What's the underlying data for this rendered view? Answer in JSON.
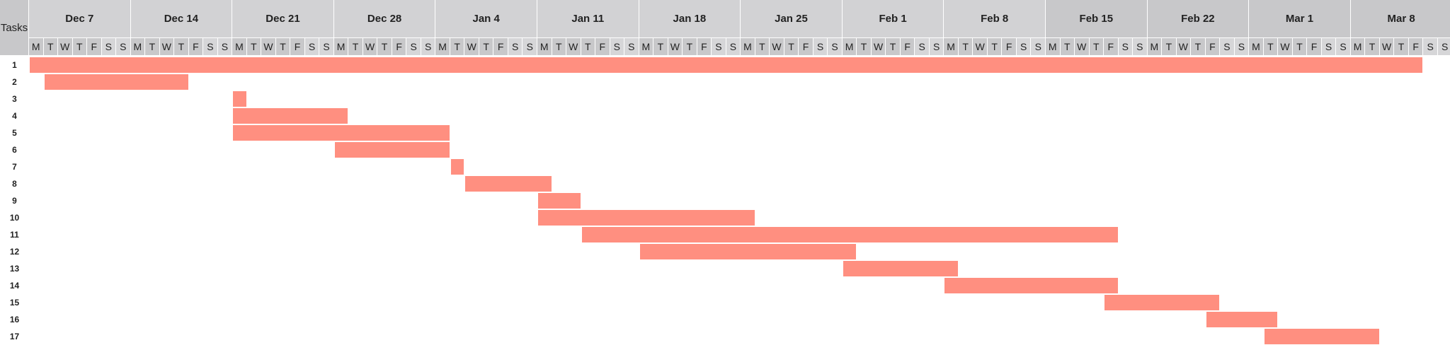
{
  "chart_data": {
    "type": "gantt",
    "title": "",
    "header_label": "Tasks",
    "week_labels": [
      "Dec 7",
      "Dec 14",
      "Dec 21",
      "Dec 28",
      "Jan 4",
      "Jan 11",
      "Jan 18",
      "Jan 25",
      "Feb 1",
      "Feb 8",
      "Feb 15",
      "Feb 22",
      "Mar 1",
      "Mar 8"
    ],
    "day_letters": [
      "M",
      "T",
      "W",
      "T",
      "F",
      "S",
      "S"
    ],
    "bar_color": "#ff8f80",
    "tasks": [
      {
        "label": "1",
        "start_day": 0,
        "end_day": 96
      },
      {
        "label": "2",
        "start_day": 1,
        "end_day": 11
      },
      {
        "label": "3",
        "start_day": 14,
        "end_day": 15
      },
      {
        "label": "4",
        "start_day": 14,
        "end_day": 22
      },
      {
        "label": "5",
        "start_day": 14,
        "end_day": 29
      },
      {
        "label": "6",
        "start_day": 21,
        "end_day": 29
      },
      {
        "label": "7",
        "start_day": 29,
        "end_day": 30
      },
      {
        "label": "8",
        "start_day": 30,
        "end_day": 36
      },
      {
        "label": "9",
        "start_day": 35,
        "end_day": 38
      },
      {
        "label": "10",
        "start_day": 35,
        "end_day": 50
      },
      {
        "label": "11",
        "start_day": 38,
        "end_day": 75
      },
      {
        "label": "12",
        "start_day": 42,
        "end_day": 57
      },
      {
        "label": "13",
        "start_day": 56,
        "end_day": 64
      },
      {
        "label": "14",
        "start_day": 63,
        "end_day": 75
      },
      {
        "label": "15",
        "start_day": 74,
        "end_day": 82
      },
      {
        "label": "16",
        "start_day": 81,
        "end_day": 86
      },
      {
        "label": "17",
        "start_day": 85,
        "end_day": 93
      }
    ]
  }
}
